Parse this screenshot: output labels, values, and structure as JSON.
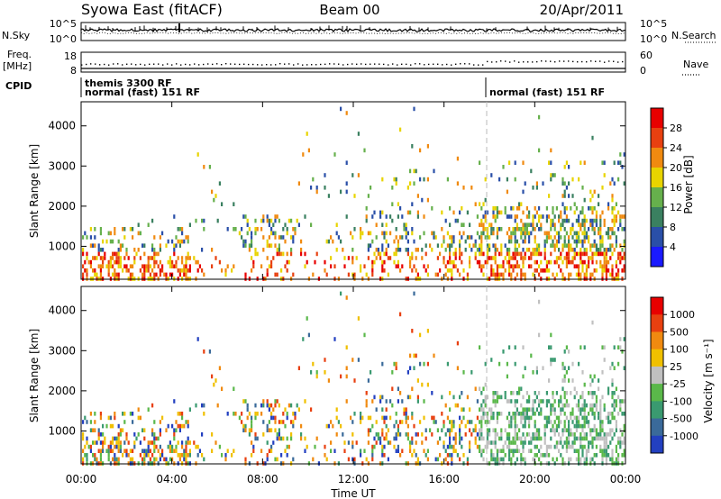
{
  "header": {
    "station": "Syowa East (fitACF)",
    "beam": "Beam 00",
    "date": "20/Apr/2011"
  },
  "status_panel": {
    "nsky_label": "N.Sky",
    "nsearch_label": "N.Search",
    "nsky_ticks": [
      "10^5",
      "10^0"
    ],
    "nsearch_ticks": [
      "10^5",
      "10^0"
    ],
    "freq_label_1": "Freq.",
    "freq_label_2": "[MHz]",
    "freq_ticks": [
      "18",
      "8"
    ],
    "nave_ticks": [
      "60",
      "0"
    ],
    "nave_label": "Nave",
    "cpid_label": "CPID",
    "cpid_entries": [
      "themis 3300 RF",
      "normal (fast) 151 RF",
      "normal (fast) 151 RF"
    ]
  },
  "chart_data": [
    {
      "type": "heatmap",
      "title": "",
      "quantity": "Power",
      "ylabel": "Slant Range [km]",
      "xlabel": "",
      "ylim": [
        180,
        4600
      ],
      "yticks": [
        1000,
        2000,
        3000,
        4000
      ],
      "xlim": [
        0,
        24
      ],
      "xticks": [
        0,
        4,
        8,
        12,
        16,
        20,
        24
      ],
      "colorbar": {
        "label": "Power [dB]",
        "tick_labels": [
          "4",
          "8",
          "12",
          "16",
          "20",
          "24",
          "28"
        ],
        "colors": [
          "#1a1aff",
          "#2a4fa8",
          "#3a8060",
          "#66b04c",
          "#e8d400",
          "#f08a10",
          "#e84010",
          "#e80000"
        ]
      }
    },
    {
      "type": "heatmap",
      "title": "",
      "quantity": "Velocity",
      "ylabel": "Slant Range [km]",
      "xlabel": "Time UT",
      "ylim": [
        180,
        4600
      ],
      "yticks": [
        1000,
        2000,
        3000,
        4000
      ],
      "xlim": [
        0,
        24
      ],
      "xticks": [
        0,
        4,
        8,
        12,
        16,
        20,
        24
      ],
      "xtick_labels": [
        "00:00",
        "04:00",
        "08:00",
        "12:00",
        "16:00",
        "20:00",
        "00:00"
      ],
      "colorbar": {
        "label": "Velocity [m s⁻¹]",
        "tick_labels": [
          "1000",
          "500",
          "100",
          "25",
          "-25",
          "-100",
          "-500",
          "-1000"
        ],
        "colors": [
          "#2340c0",
          "#3a6a9a",
          "#3a9a70",
          "#5ab84a",
          "#c0c0c0",
          "#f0c000",
          "#f08a10",
          "#e84010",
          "#e80000"
        ]
      }
    }
  ]
}
